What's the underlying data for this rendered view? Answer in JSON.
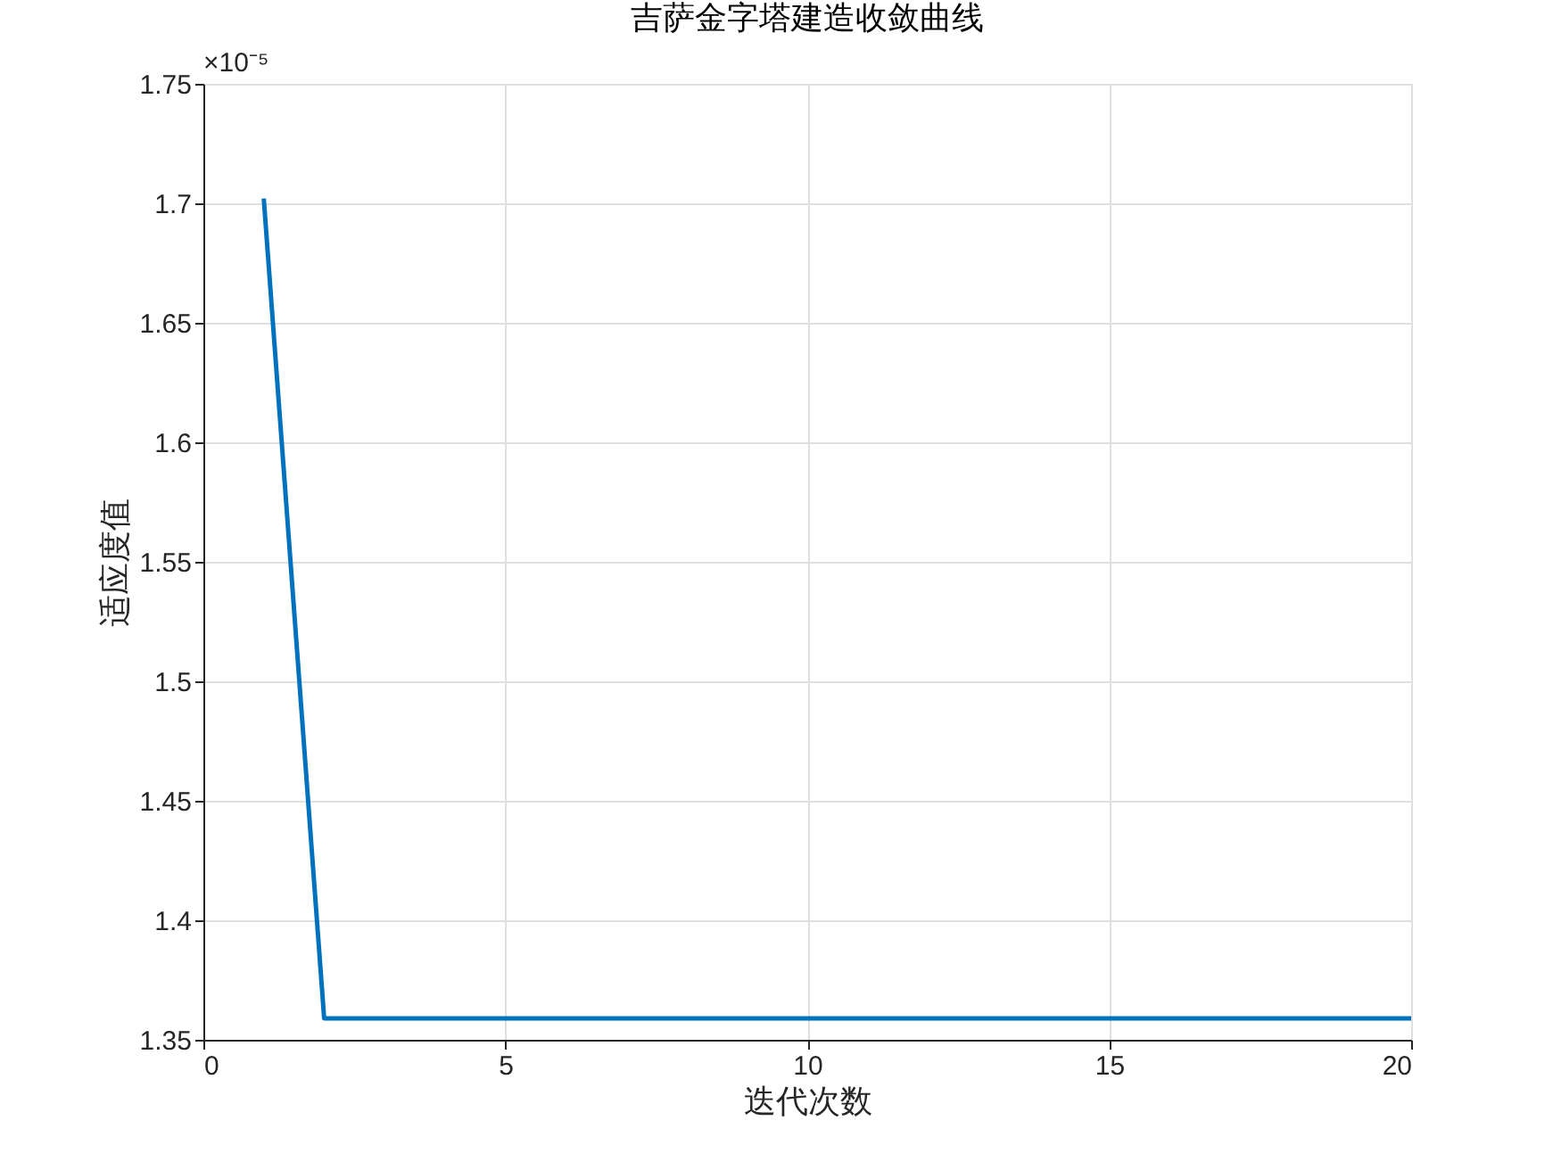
{
  "chart_data": {
    "type": "line",
    "title": "吉萨金字塔建造收敛曲线",
    "xlabel": "迭代次数",
    "ylabel": "适应度值",
    "x": [
      1,
      2,
      3,
      4,
      5,
      6,
      7,
      8,
      9,
      10,
      11,
      12,
      13,
      14,
      15,
      16,
      17,
      18,
      19,
      20
    ],
    "series": [
      {
        "color": "#0072bd",
        "values": [
          1.702,
          1.359,
          1.359,
          1.359,
          1.359,
          1.359,
          1.359,
          1.359,
          1.359,
          1.359,
          1.359,
          1.359,
          1.359,
          1.359,
          1.359,
          1.359,
          1.359,
          1.359,
          1.359,
          1.359
        ]
      }
    ],
    "xlim": [
      0,
      20
    ],
    "xticks": [
      0,
      5,
      10,
      15,
      20
    ],
    "ylim": [
      1.35,
      1.75
    ],
    "yticks": [
      1.35,
      1.4,
      1.45,
      1.5,
      1.55,
      1.6,
      1.65,
      1.7,
      1.75
    ],
    "annotations": [
      "×10⁻⁵"
    ],
    "grid": true,
    "legend": false,
    "marker": "none",
    "line_style": "solid"
  }
}
